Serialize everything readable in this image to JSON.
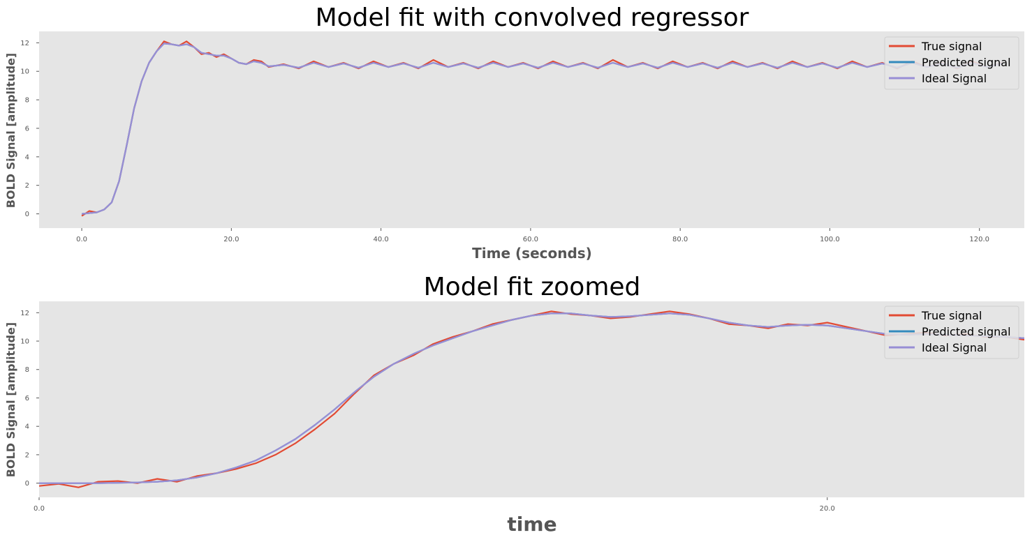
{
  "chart_data": [
    {
      "type": "line",
      "title": "Model fit with convolved regressor",
      "xlabel": "Time (seconds)",
      "ylabel": "BOLD Signal [amplitude]",
      "xlim": [
        -5.7,
        126
      ],
      "ylim": [
        -1,
        12.8
      ],
      "xticks": [
        0,
        20,
        40,
        60,
        80,
        100,
        120
      ],
      "xtick_labels": [
        "0.0",
        "20.0",
        "40.0",
        "60.0",
        "80.0",
        "100.0",
        "120.0"
      ],
      "yticks": [
        0,
        2,
        4,
        6,
        8,
        10,
        12
      ],
      "ytick_labels": [
        "0",
        "2",
        "4",
        "6",
        "8",
        "10",
        "12"
      ],
      "grid": false,
      "legend_position": "top-right",
      "series": [
        {
          "name": "True signal",
          "color": "#E24A33",
          "x": [
            0,
            1,
            2,
            3,
            4,
            5,
            6,
            7,
            8,
            9,
            10,
            11,
            12,
            13,
            14,
            15,
            16,
            17,
            18,
            19,
            20,
            21,
            22,
            23,
            24,
            25,
            27,
            29,
            31,
            33,
            35,
            37,
            39,
            41,
            43,
            45,
            47,
            49,
            51,
            53,
            55,
            57,
            59,
            61,
            63,
            65,
            67,
            69,
            71,
            73,
            75,
            77,
            79,
            81,
            83,
            85,
            87,
            89,
            91,
            93,
            95,
            97,
            99,
            101,
            103,
            105,
            107,
            109,
            111,
            113,
            115,
            117,
            119,
            121,
            123
          ],
          "y": [
            -0.15,
            0.2,
            0.1,
            0.3,
            0.8,
            2.3,
            4.8,
            7.4,
            9.3,
            10.6,
            11.4,
            12.1,
            11.9,
            11.8,
            12.1,
            11.7,
            11.2,
            11.3,
            11.0,
            11.2,
            10.9,
            10.6,
            10.5,
            10.8,
            10.7,
            10.3,
            10.5,
            10.2,
            10.7,
            10.3,
            10.6,
            10.2,
            10.7,
            10.3,
            10.6,
            10.2,
            10.8,
            10.3,
            10.6,
            10.2,
            10.7,
            10.3,
            10.6,
            10.2,
            10.7,
            10.3,
            10.6,
            10.2,
            10.8,
            10.3,
            10.6,
            10.2,
            10.7,
            10.3,
            10.6,
            10.2,
            10.7,
            10.3,
            10.6,
            10.2,
            10.7,
            10.3,
            10.6,
            10.2,
            10.7,
            10.3,
            10.6,
            10.2,
            10.7,
            10.3,
            10.6,
            10.2,
            10.7,
            10.3,
            10.6
          ]
        },
        {
          "name": "Predicted signal",
          "color": "#348ABD",
          "x": [
            0,
            1,
            2,
            3,
            4,
            5,
            6,
            7,
            8,
            9,
            10,
            11,
            12,
            13,
            14,
            15,
            16,
            17,
            18,
            19,
            20,
            21,
            22,
            23,
            24,
            25,
            27,
            29,
            31,
            33,
            35,
            37,
            39,
            41,
            43,
            45,
            47,
            49,
            51,
            53,
            55,
            57,
            59,
            61,
            63,
            65,
            67,
            69,
            71,
            73,
            75,
            77,
            79,
            81,
            83,
            85,
            87,
            89,
            91,
            93,
            95,
            97,
            99,
            101,
            103,
            105,
            107,
            109,
            111,
            113,
            115,
            117,
            119,
            121,
            123
          ],
          "y": [
            0.0,
            0.05,
            0.1,
            0.3,
            0.8,
            2.3,
            4.8,
            7.4,
            9.3,
            10.6,
            11.4,
            11.95,
            11.9,
            11.8,
            11.9,
            11.7,
            11.3,
            11.2,
            11.1,
            11.1,
            10.9,
            10.6,
            10.5,
            10.7,
            10.6,
            10.35,
            10.45,
            10.25,
            10.6,
            10.3,
            10.55,
            10.25,
            10.6,
            10.3,
            10.55,
            10.25,
            10.6,
            10.3,
            10.55,
            10.25,
            10.6,
            10.3,
            10.55,
            10.25,
            10.6,
            10.3,
            10.55,
            10.25,
            10.6,
            10.3,
            10.55,
            10.25,
            10.6,
            10.3,
            10.55,
            10.25,
            10.6,
            10.3,
            10.55,
            10.25,
            10.6,
            10.3,
            10.55,
            10.25,
            10.6,
            10.3,
            10.55,
            10.25,
            10.6,
            10.3,
            10.55,
            10.25,
            10.6,
            10.3,
            10.55
          ]
        },
        {
          "name": "Ideal Signal",
          "color": "#988ED5",
          "x": [
            0,
            1,
            2,
            3,
            4,
            5,
            6,
            7,
            8,
            9,
            10,
            11,
            12,
            13,
            14,
            15,
            16,
            17,
            18,
            19,
            20,
            21,
            22,
            23,
            24,
            25,
            27,
            29,
            31,
            33,
            35,
            37,
            39,
            41,
            43,
            45,
            47,
            49,
            51,
            53,
            55,
            57,
            59,
            61,
            63,
            65,
            67,
            69,
            71,
            73,
            75,
            77,
            79,
            81,
            83,
            85,
            87,
            89,
            91,
            93,
            95,
            97,
            99,
            101,
            103,
            105,
            107,
            109,
            111,
            113,
            115,
            117,
            119,
            121,
            123
          ],
          "y": [
            0.0,
            0.05,
            0.1,
            0.3,
            0.8,
            2.3,
            4.8,
            7.4,
            9.3,
            10.6,
            11.4,
            11.95,
            11.9,
            11.8,
            11.9,
            11.7,
            11.3,
            11.2,
            11.1,
            11.1,
            10.9,
            10.6,
            10.5,
            10.7,
            10.6,
            10.35,
            10.45,
            10.25,
            10.6,
            10.3,
            10.55,
            10.25,
            10.6,
            10.3,
            10.55,
            10.25,
            10.6,
            10.3,
            10.55,
            10.25,
            10.6,
            10.3,
            10.55,
            10.25,
            10.6,
            10.3,
            10.55,
            10.25,
            10.6,
            10.3,
            10.55,
            10.25,
            10.6,
            10.3,
            10.55,
            10.25,
            10.6,
            10.3,
            10.55,
            10.25,
            10.6,
            10.3,
            10.55,
            10.25,
            10.6,
            10.3,
            10.55,
            10.25,
            10.6,
            10.3,
            10.55,
            10.25,
            10.6,
            10.3,
            10.55
          ]
        }
      ]
    },
    {
      "type": "line",
      "title": "Model fit zoomed",
      "xlabel": "time",
      "ylabel": "BOLD Signal [amplitude]",
      "xlim": [
        0,
        25
      ],
      "ylim": [
        -1,
        12.8
      ],
      "xticks": [
        0,
        20
      ],
      "xtick_labels": [
        "0.0",
        "20.0"
      ],
      "yticks": [
        0,
        2,
        4,
        6,
        8,
        10,
        12
      ],
      "ytick_labels": [
        "0",
        "2",
        "4",
        "6",
        "8",
        "10",
        "12"
      ],
      "grid": false,
      "legend_position": "top-right",
      "series": [
        {
          "name": "True signal",
          "color": "#E24A33",
          "x": [
            0,
            0.5,
            1,
            1.5,
            2,
            2.5,
            3,
            3.5,
            4,
            4.5,
            5,
            5.5,
            6,
            6.5,
            7,
            7.5,
            8,
            8.5,
            9,
            9.5,
            10,
            10.5,
            11,
            11.5,
            12,
            12.5,
            13,
            13.5,
            14,
            14.5,
            15,
            15.5,
            16,
            16.5,
            17,
            17.5,
            18,
            18.5,
            19,
            19.5,
            20,
            20.5,
            21,
            21.5,
            22,
            22.5,
            23,
            23.5,
            24,
            24.5,
            25
          ],
          "y": [
            -0.2,
            -0.05,
            -0.3,
            0.1,
            0.15,
            0.0,
            0.3,
            0.1,
            0.5,
            0.7,
            1.0,
            1.4,
            2.0,
            2.8,
            3.8,
            4.9,
            6.3,
            7.6,
            8.4,
            9.0,
            9.8,
            10.3,
            10.7,
            11.2,
            11.5,
            11.8,
            12.1,
            11.9,
            11.8,
            11.6,
            11.7,
            11.9,
            12.1,
            11.9,
            11.6,
            11.2,
            11.1,
            10.9,
            11.2,
            11.1,
            11.3,
            11.0,
            10.7,
            10.4,
            10.5,
            10.6,
            10.4,
            10.5,
            10.3,
            10.3,
            10.1
          ]
        },
        {
          "name": "Predicted signal",
          "color": "#348ABD",
          "x": [
            0,
            0.5,
            1,
            1.5,
            2,
            2.5,
            3,
            3.5,
            4,
            4.5,
            5,
            5.5,
            6,
            6.5,
            7,
            7.5,
            8,
            8.5,
            9,
            9.5,
            10,
            10.5,
            11,
            11.5,
            12,
            12.5,
            13,
            13.5,
            14,
            14.5,
            15,
            15.5,
            16,
            16.5,
            17,
            17.5,
            18,
            18.5,
            19,
            19.5,
            20,
            20.5,
            21,
            21.5,
            22,
            22.5,
            23,
            23.5,
            24,
            24.5,
            25
          ],
          "y": [
            0.0,
            0.0,
            0.0,
            0.0,
            0.02,
            0.05,
            0.1,
            0.2,
            0.4,
            0.7,
            1.1,
            1.6,
            2.3,
            3.1,
            4.1,
            5.2,
            6.4,
            7.5,
            8.4,
            9.1,
            9.7,
            10.2,
            10.7,
            11.1,
            11.5,
            11.8,
            11.95,
            11.95,
            11.8,
            11.7,
            11.75,
            11.85,
            11.95,
            11.85,
            11.6,
            11.3,
            11.1,
            11.0,
            11.1,
            11.15,
            11.1,
            10.9,
            10.7,
            10.5,
            10.45,
            10.5,
            10.45,
            10.4,
            10.35,
            10.3,
            10.2
          ]
        },
        {
          "name": "Ideal Signal",
          "color": "#988ED5",
          "x": [
            0,
            0.5,
            1,
            1.5,
            2,
            2.5,
            3,
            3.5,
            4,
            4.5,
            5,
            5.5,
            6,
            6.5,
            7,
            7.5,
            8,
            8.5,
            9,
            9.5,
            10,
            10.5,
            11,
            11.5,
            12,
            12.5,
            13,
            13.5,
            14,
            14.5,
            15,
            15.5,
            16,
            16.5,
            17,
            17.5,
            18,
            18.5,
            19,
            19.5,
            20,
            20.5,
            21,
            21.5,
            22,
            22.5,
            23,
            23.5,
            24,
            24.5,
            25
          ],
          "y": [
            0.0,
            0.0,
            0.0,
            0.0,
            0.02,
            0.05,
            0.1,
            0.2,
            0.4,
            0.7,
            1.1,
            1.6,
            2.3,
            3.1,
            4.1,
            5.2,
            6.4,
            7.5,
            8.4,
            9.1,
            9.7,
            10.2,
            10.7,
            11.1,
            11.5,
            11.8,
            11.95,
            11.95,
            11.8,
            11.7,
            11.75,
            11.85,
            11.95,
            11.85,
            11.6,
            11.3,
            11.1,
            11.0,
            11.1,
            11.15,
            11.1,
            10.9,
            10.7,
            10.5,
            10.45,
            10.5,
            10.45,
            10.4,
            10.35,
            10.3,
            10.2
          ]
        }
      ]
    }
  ]
}
